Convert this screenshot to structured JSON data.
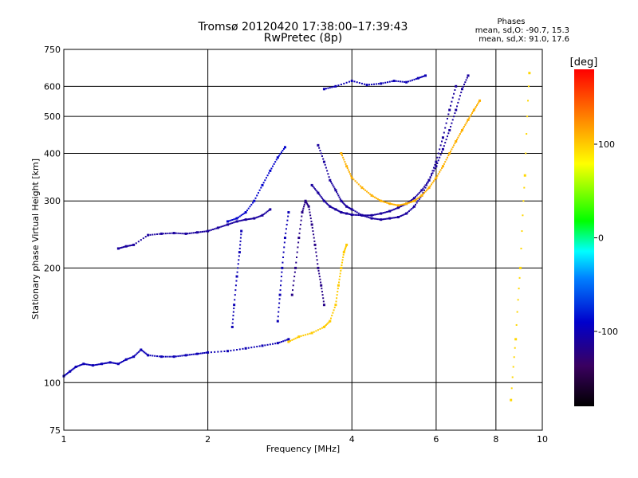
{
  "header": {
    "title": "Tromsø 20120420 17:38:00–17:39:43",
    "subtitle": "RwPretec (8p)"
  },
  "phase_stats": {
    "heading": "Phases",
    "o_mode": "mean, sd,O: -90.7, 15.3",
    "x_mode": "mean, sd,X: 91.0, 17.6"
  },
  "chart_data": {
    "type": "scatter",
    "xlabel": "Frequency [MHz]",
    "ylabel": "Stationary phase Virtual Height [km]",
    "x_scale": "log",
    "y_scale": "log",
    "xlim": [
      1,
      10
    ],
    "ylim": [
      75,
      750
    ],
    "x_ticks": [
      1,
      2,
      4,
      6,
      8,
      10
    ],
    "y_ticks": [
      75,
      100,
      200,
      300,
      400,
      500,
      600,
      750
    ],
    "grid": true,
    "colorbar": {
      "label": "[deg]",
      "range": [
        -180,
        180
      ],
      "ticks": [
        -100,
        0,
        100
      ],
      "colors": [
        "#000000",
        "#3a0060",
        "#0000cc",
        "#0080ff",
        "#00ffff",
        "#00ff00",
        "#ffff00",
        "#ff8000",
        "#ff0000"
      ]
    },
    "series": [
      {
        "phase": -100,
        "x": [
          1.0,
          1.03,
          1.06,
          1.1,
          1.15,
          1.2,
          1.25,
          1.3,
          1.35,
          1.4,
          1.45,
          1.5,
          1.6,
          1.7,
          1.8,
          1.9,
          2.0,
          2.2,
          2.4,
          2.6,
          2.8,
          2.95
        ],
        "y": [
          104,
          107,
          110,
          112,
          111,
          112,
          113,
          112,
          115,
          117,
          122,
          118,
          117,
          117,
          118,
          119,
          120,
          121,
          123,
          125,
          127,
          130
        ]
      },
      {
        "phase": -110,
        "x": [
          1.3,
          1.35,
          1.4,
          1.5,
          1.6,
          1.7,
          1.8,
          1.9,
          2.0,
          2.1,
          2.2,
          2.3,
          2.4,
          2.5,
          2.6,
          2.7
        ],
        "y": [
          225,
          228,
          230,
          244,
          246,
          247,
          246,
          248,
          250,
          255,
          260,
          265,
          268,
          270,
          275,
          285
        ]
      },
      {
        "phase": -90,
        "x": [
          2.2,
          2.3,
          2.4,
          2.5,
          2.6,
          2.7,
          2.8,
          2.9
        ],
        "y": [
          265,
          270,
          280,
          300,
          330,
          360,
          390,
          415
        ]
      },
      {
        "phase": -100,
        "x": [
          2.25,
          2.27,
          2.3,
          2.33,
          2.35
        ],
        "y": [
          140,
          160,
          190,
          220,
          250
        ]
      },
      {
        "phase": -100,
        "x": [
          2.8,
          2.83,
          2.86,
          2.9,
          2.95
        ],
        "y": [
          145,
          170,
          200,
          240,
          280
        ]
      },
      {
        "phase": -120,
        "x": [
          3.0,
          3.05,
          3.1,
          3.15,
          3.2,
          3.25,
          3.3,
          3.35,
          3.4,
          3.45,
          3.5
        ],
        "y": [
          170,
          200,
          240,
          280,
          300,
          290,
          260,
          230,
          200,
          180,
          160
        ]
      },
      {
        "phase": -110,
        "x": [
          3.4,
          3.5,
          3.6,
          3.7,
          3.8,
          3.9,
          4.0,
          4.2,
          4.4,
          4.6,
          4.8,
          5.0,
          5.2,
          5.4,
          5.6,
          5.8,
          6.0,
          6.2,
          6.4,
          6.6
        ],
        "y": [
          420,
          380,
          340,
          320,
          300,
          290,
          285,
          275,
          270,
          268,
          270,
          272,
          278,
          290,
          310,
          340,
          380,
          440,
          520,
          600
        ]
      },
      {
        "phase": -110,
        "x": [
          3.3,
          3.4,
          3.5,
          3.6,
          3.7,
          3.8,
          3.9,
          4.0,
          4.2,
          4.4,
          4.6,
          4.8,
          5.0,
          5.2,
          5.4,
          5.6,
          5.8,
          6.0,
          6.2,
          6.4,
          6.6,
          6.8,
          7.0
        ],
        "y": [
          330,
          315,
          300,
          290,
          285,
          280,
          278,
          276,
          275,
          275,
          278,
          282,
          288,
          295,
          305,
          320,
          340,
          370,
          410,
          460,
          520,
          590,
          640
        ]
      },
      {
        "phase": -100,
        "x": [
          3.5,
          3.7,
          4.0,
          4.3,
          4.6,
          4.9,
          5.2,
          5.5,
          5.7
        ],
        "y": [
          590,
          600,
          620,
          605,
          610,
          620,
          615,
          630,
          640
        ]
      },
      {
        "phase": 100,
        "x": [
          2.95,
          3.1,
          3.3,
          3.5,
          3.6,
          3.7,
          3.75,
          3.8,
          3.85,
          3.9
        ],
        "y": [
          128,
          132,
          135,
          140,
          145,
          160,
          180,
          200,
          220,
          230
        ]
      },
      {
        "phase": 110,
        "x": [
          3.8,
          3.9,
          4.0,
          4.2,
          4.4,
          4.6,
          4.8,
          5.0,
          5.2,
          5.4,
          5.6,
          5.8,
          6.0,
          6.2,
          6.4,
          6.6,
          6.8,
          7.0,
          7.2,
          7.4
        ],
        "y": [
          400,
          370,
          345,
          325,
          310,
          300,
          295,
          292,
          295,
          300,
          310,
          325,
          345,
          370,
          400,
          430,
          460,
          490,
          520,
          550
        ]
      },
      {
        "phase": 95,
        "x": [
          8.6,
          8.8,
          9.0,
          9.2,
          9.4
        ],
        "y": [
          90,
          130,
          200,
          350,
          650
        ]
      }
    ]
  }
}
